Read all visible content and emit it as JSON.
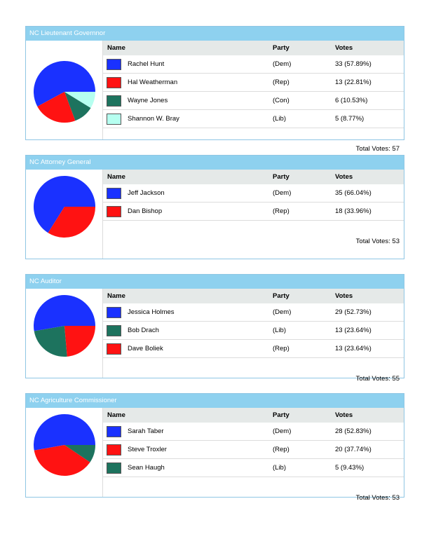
{
  "colors": {
    "dem": "#1a31ff",
    "rep": "#ff1212",
    "con": "#1d735e",
    "lib_light": "#b6fff0",
    "lib_dark": "#1d735e",
    "header_bar": "#8ed1ef",
    "table_header": "#e5e9e8"
  },
  "headers": {
    "name": "Name",
    "party": "Party",
    "votes": "Votes"
  },
  "races": [
    {
      "title": "NC Lieutenant Governnor",
      "total": "Total Votes: 57",
      "candidates": [
        {
          "name": "Rachel Hunt",
          "party": "(Dem)",
          "votes": "33 (57.89%)",
          "count": 33,
          "color": "#1a31ff"
        },
        {
          "name": "Hal Weatherman",
          "party": "(Rep)",
          "votes": "13 (22.81%)",
          "count": 13,
          "color": "#ff1212"
        },
        {
          "name": "Wayne Jones",
          "party": "(Con)",
          "votes": "6 (10.53%)",
          "count": 6,
          "color": "#1d735e"
        },
        {
          "name": "Shannon W. Bray",
          "party": "(Lib)",
          "votes": "5 (8.77%)",
          "count": 5,
          "color": "#b6fff0"
        }
      ]
    },
    {
      "title": "NC Attorney General",
      "total": "Total Votes: 53",
      "candidates": [
        {
          "name": "Jeff Jackson",
          "party": "(Dem)",
          "votes": "35 (66.04%)",
          "count": 35,
          "color": "#1a31ff"
        },
        {
          "name": "Dan Bishop",
          "party": "(Rep)",
          "votes": "18 (33.96%)",
          "count": 18,
          "color": "#ff1212"
        }
      ]
    },
    {
      "title": "NC Auditor",
      "total": "Total Votes: 55",
      "candidates": [
        {
          "name": "Jessica Holmes",
          "party": "(Dem)",
          "votes": "29 (52.73%)",
          "count": 29,
          "color": "#1a31ff"
        },
        {
          "name": "Bob Drach",
          "party": "(Lib)",
          "votes": "13 (23.64%)",
          "count": 13,
          "color": "#1d735e"
        },
        {
          "name": "Dave Boliek",
          "party": "(Rep)",
          "votes": "13 (23.64%)",
          "count": 13,
          "color": "#ff1212"
        }
      ]
    },
    {
      "title": "NC Agriculture Commissioner",
      "total": "Total Votes: 53",
      "candidates": [
        {
          "name": "Sarah Taber",
          "party": "(Dem)",
          "votes": "28 (52.83%)",
          "count": 28,
          "color": "#1a31ff"
        },
        {
          "name": "Steve Troxler",
          "party": "(Rep)",
          "votes": "20 (37.74%)",
          "count": 20,
          "color": "#ff1212"
        },
        {
          "name": "Sean Haugh",
          "party": "(Lib)",
          "votes": "5 (9.43%)",
          "count": 5,
          "color": "#1d735e"
        }
      ]
    }
  ]
}
